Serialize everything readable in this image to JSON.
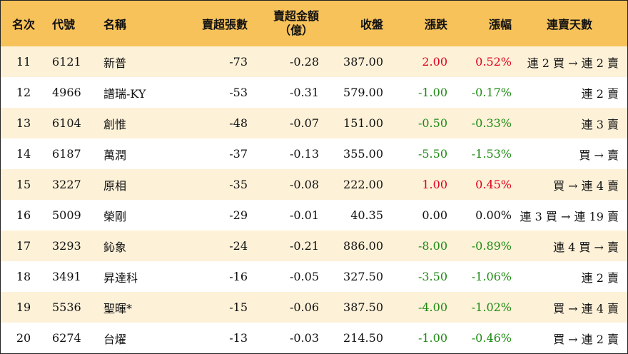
{
  "headers": {
    "rank": "名次",
    "code": "代號",
    "name": "名稱",
    "net_volume": "賣超張數",
    "net_amount_line1": "賣超金額",
    "net_amount_line2": "（億）",
    "close": "收盤",
    "change": "漲跌",
    "change_pct": "漲幅",
    "streak": "連賣天數"
  },
  "colors": {
    "header_bg": "#f7c25a",
    "row_alt_bg": "#fdf1d8",
    "up": "#e0001b",
    "down": "#1f8a14"
  },
  "rows": [
    {
      "rank": "11",
      "code": "6121",
      "name": "新普",
      "net_volume": "-73",
      "net_amount": "-0.28",
      "close": "387.00",
      "change": "2.00",
      "change_pct": "0.52%",
      "streak": "連 2 買 → 連 2 賣",
      "direction": "up"
    },
    {
      "rank": "12",
      "code": "4966",
      "name": "譜瑞-KY",
      "net_volume": "-53",
      "net_amount": "-0.31",
      "close": "579.00",
      "change": "-1.00",
      "change_pct": "-0.17%",
      "streak": "連 2 賣",
      "direction": "down"
    },
    {
      "rank": "13",
      "code": "6104",
      "name": "創惟",
      "net_volume": "-48",
      "net_amount": "-0.07",
      "close": "151.00",
      "change": "-0.50",
      "change_pct": "-0.33%",
      "streak": "連 3 賣",
      "direction": "down"
    },
    {
      "rank": "14",
      "code": "6187",
      "name": "萬潤",
      "net_volume": "-37",
      "net_amount": "-0.13",
      "close": "355.00",
      "change": "-5.50",
      "change_pct": "-1.53%",
      "streak": "買 → 賣",
      "direction": "down"
    },
    {
      "rank": "15",
      "code": "3227",
      "name": "原相",
      "net_volume": "-35",
      "net_amount": "-0.08",
      "close": "222.00",
      "change": "1.00",
      "change_pct": "0.45%",
      "streak": "買 → 連 4 賣",
      "direction": "up"
    },
    {
      "rank": "16",
      "code": "5009",
      "name": "榮剛",
      "net_volume": "-29",
      "net_amount": "-0.01",
      "close": "40.35",
      "change": "0.00",
      "change_pct": "0.00%",
      "streak": "連 3 買 → 連 19 賣",
      "direction": "flat"
    },
    {
      "rank": "17",
      "code": "3293",
      "name": "鈊象",
      "net_volume": "-24",
      "net_amount": "-0.21",
      "close": "886.00",
      "change": "-8.00",
      "change_pct": "-0.89%",
      "streak": "連 4 買 → 賣",
      "direction": "down"
    },
    {
      "rank": "18",
      "code": "3491",
      "name": "昇達科",
      "net_volume": "-16",
      "net_amount": "-0.05",
      "close": "327.50",
      "change": "-3.50",
      "change_pct": "-1.06%",
      "streak": "連 2 賣",
      "direction": "down"
    },
    {
      "rank": "19",
      "code": "5536",
      "name": "聖暉*",
      "net_volume": "-15",
      "net_amount": "-0.06",
      "close": "387.50",
      "change": "-4.00",
      "change_pct": "-1.02%",
      "streak": "買 → 連 4 賣",
      "direction": "down"
    },
    {
      "rank": "20",
      "code": "6274",
      "name": "台燿",
      "net_volume": "-13",
      "net_amount": "-0.03",
      "close": "214.50",
      "change": "-1.00",
      "change_pct": "-0.46%",
      "streak": "買 → 連 2 賣",
      "direction": "down"
    }
  ]
}
